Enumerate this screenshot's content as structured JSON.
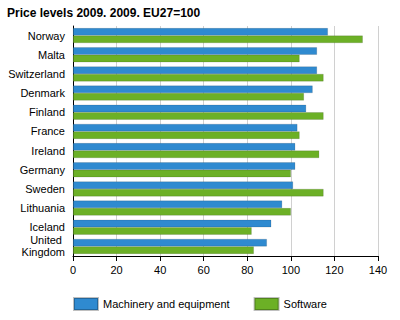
{
  "chart_data": {
    "type": "bar",
    "title": "Price levels 2009. 2009. EU27=100",
    "orientation": "horizontal",
    "categories": [
      "Norway",
      "Malta",
      "Switzerland",
      "Denmark",
      "Finland",
      "France",
      "Ireland",
      "Germany",
      "Sweden",
      "Lithuania",
      "Iceland",
      "United Kingdom"
    ],
    "series": [
      {
        "name": "Machinery and equipment",
        "color": "#2f8ad0",
        "values": [
          117,
          112,
          112,
          110,
          107,
          103,
          102,
          102,
          101,
          96,
          91,
          89
        ]
      },
      {
        "name": "Software",
        "color": "#6cb026",
        "values": [
          133,
          104,
          115,
          106,
          115,
          104,
          113,
          100,
          115,
          100,
          82,
          83
        ]
      }
    ],
    "xlim": [
      0,
      140
    ],
    "xticks": [
      0,
      20,
      40,
      60,
      80,
      100,
      120,
      140
    ],
    "grid": true,
    "legend": "bottom"
  }
}
